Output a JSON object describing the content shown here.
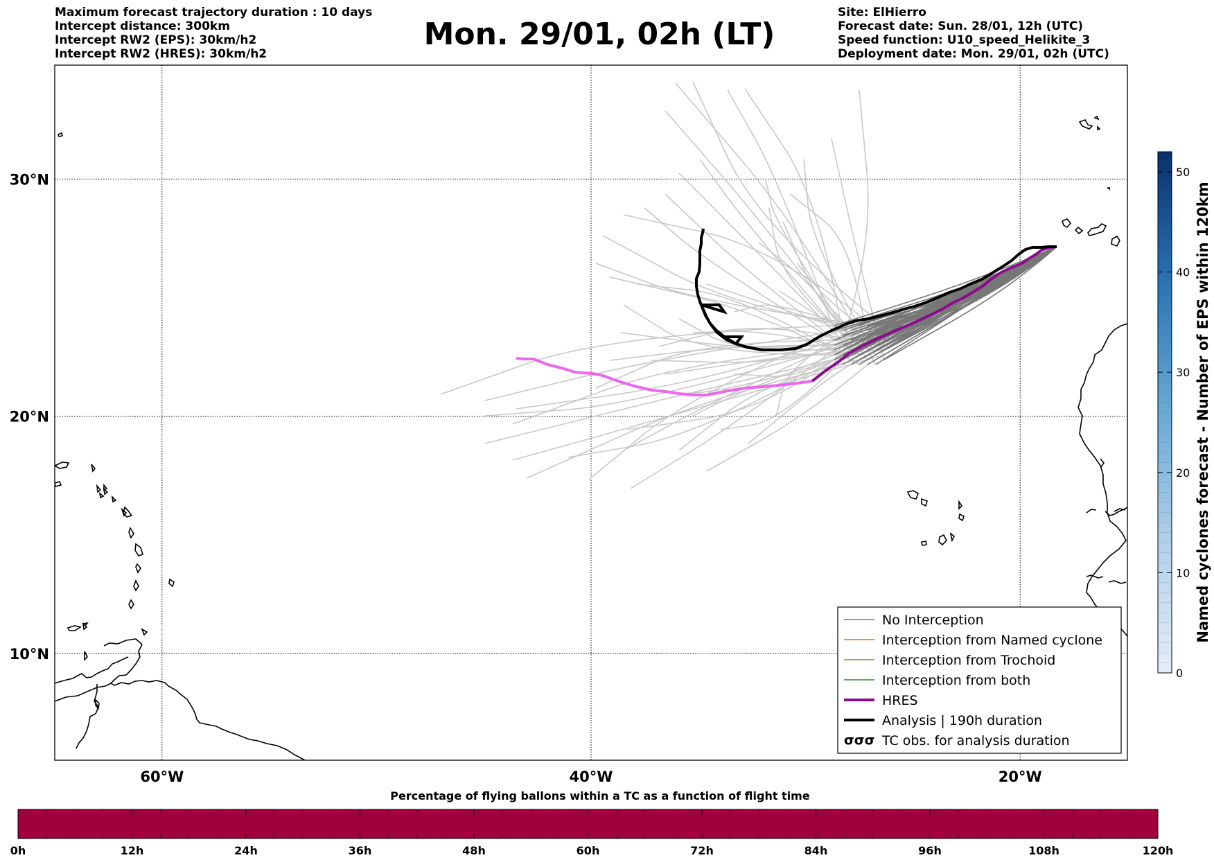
{
  "header": {
    "left": [
      "Maximum forecast trajectory duration : 10 days",
      "Intercept distance: 300km",
      "Intercept RW2 (EPS):  30km/h2",
      "Intercept RW2 (HRES): 30km/h2"
    ],
    "title": "Mon. 29/01, 02h (LT)",
    "right": [
      "Site: ElHierro",
      "Forecast date: Sun. 28/01, 12h (UTC)",
      "Speed function: U10_speed_Helikite_3",
      "Deployment date: Mon. 29/01, 02h (UTC)"
    ]
  },
  "map": {
    "lat_labels": [
      "30°N",
      "20°N",
      "10°N"
    ],
    "lon_labels": [
      "60°W",
      "40°W",
      "20°W"
    ],
    "lat_values": [
      30,
      20,
      10
    ],
    "lon_values": [
      -60,
      -40,
      -20
    ],
    "lat_range": [
      5.5,
      34.8
    ],
    "lon_range": [
      -65,
      -15
    ],
    "colors": {
      "no_interception": "#777777",
      "named_cyclone": "#ff5a1e",
      "trochoid": "#8a8a2a",
      "both": "#2a8a2a",
      "hres": "#8c0a8c",
      "hres_late": "#ee66ee",
      "analysis": "#000000",
      "eps_faded": "#c8c8c8"
    }
  },
  "legend": {
    "items": [
      {
        "label": "No Interception",
        "color": "#777777",
        "style": "thin"
      },
      {
        "label": "Interception from Named cyclone",
        "color": "#ff5a1e",
        "style": "thin"
      },
      {
        "label": "Interception from Trochoid",
        "color": "#8a8a2a",
        "style": "thin"
      },
      {
        "label": "Interception from both",
        "color": "#2a8a2a",
        "style": "thin"
      },
      {
        "label": "HRES",
        "color": "#8c0a8c",
        "style": "thick"
      },
      {
        "label": "Analysis | 190h duration",
        "color": "#000000",
        "style": "thick"
      },
      {
        "label": "TC obs. for analysis duration",
        "color": "#000000",
        "style": "symbol",
        "symbol": "σσσ"
      }
    ]
  },
  "colorbar": {
    "label": "Named cyclones forecast - Number of EPS within 120km",
    "ticks": [
      "0",
      "10",
      "20",
      "30",
      "40",
      "50"
    ],
    "tick_values": [
      0,
      10,
      20,
      30,
      40,
      50
    ],
    "max": 52,
    "color_low": "#e4eef8",
    "color_high": "#08306b"
  },
  "timebar": {
    "label": "Percentage of flying ballons within a TC as a function of flight time",
    "ticks": [
      "0h",
      "12h",
      "24h",
      "36h",
      "48h",
      "60h",
      "72h",
      "84h",
      "96h",
      "108h",
      "120h"
    ],
    "color": "#a0003c"
  }
}
